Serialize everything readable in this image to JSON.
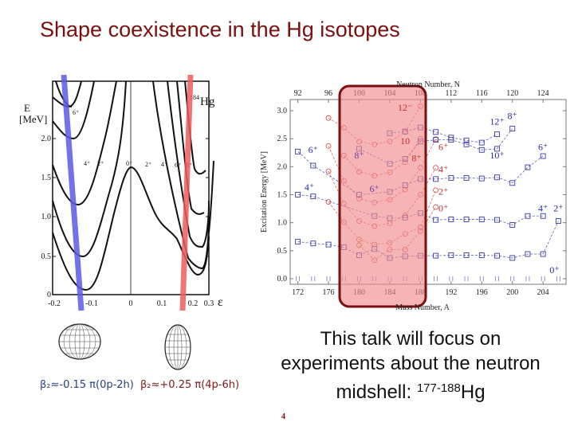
{
  "slide": {
    "title": "Shape coexistence in the Hg isotopes",
    "page_number": "4",
    "focus_text": {
      "line1": "This talk will focus on",
      "line2": "experiments about the neutron",
      "line3_prefix": "midshell: ",
      "line3_sup": "177-188",
      "line3_suffix": "Hg"
    },
    "colors": {
      "title": "#7a0f0f",
      "oblate_band": "#5a5ae6",
      "prolate_band": "#ee5c5c",
      "highlight_fill": "#f7a9a9",
      "highlight_border": "#7a0f0f"
    }
  },
  "left_chart": {
    "nucleus_label": "Hg",
    "nucleus_mass": "184",
    "ylabel_line1": "E",
    "ylabel_line2": "[MeV]",
    "xlabel": "ε",
    "y_ticks": [
      "0",
      "0.5",
      "1.0",
      "1.5",
      "2.0"
    ],
    "x_ticks": [
      "-0.2",
      "-0.1",
      "0",
      "0.1",
      "0.2",
      "0.3"
    ],
    "level_labels": [
      "6⁺",
      "4⁺",
      "2⁺",
      "0⁺",
      "2⁺",
      "4⁺",
      "6⁺",
      "8⁺"
    ]
  },
  "shapes": {
    "oblate_caption": "β₂≈-0.15 π(0p-2h)",
    "prolate_caption": "β₂≈+0.25 π(4p-6h)"
  },
  "chart_data": {
    "type": "line",
    "title": "",
    "xlabel": "Mass Number, A",
    "xlabel_top": "Neutron Number, N",
    "ylabel": "Excitation Energy [MeV]",
    "x_ticks": [
      172,
      176,
      180,
      184,
      188,
      192,
      196,
      200,
      204
    ],
    "x_ticks_top": [
      92,
      96,
      100,
      104,
      108,
      112,
      116,
      120,
      124
    ],
    "y_ticks": [
      0.0,
      0.5,
      1.0,
      1.5,
      2.0,
      2.5,
      3.0
    ],
    "xlim": [
      171,
      207
    ],
    "ylim": [
      -0.1,
      3.2
    ],
    "highlight_region": {
      "x_from": 177.5,
      "x_to": 188
    },
    "series": [
      {
        "name": "intruder 0+",
        "color": "#d04040",
        "x": [
          180,
          182,
          184,
          186,
          188,
          190
        ],
        "y": [
          0.6,
          0.33,
          0.52,
          0.52,
          0.85,
          1.28
        ]
      },
      {
        "name": "intruder 2+",
        "color": "#d04040",
        "x": [
          176,
          178,
          180,
          182,
          184,
          186,
          188,
          190
        ],
        "y": [
          1.37,
          1.01,
          0.7,
          0.61,
          0.64,
          0.8,
          0.92,
          1.58
        ]
      },
      {
        "name": "intruder 4+",
        "color": "#d04040",
        "x": [
          176,
          178,
          180,
          182,
          184,
          186,
          188,
          190
        ],
        "y": [
          1.92,
          1.34,
          1.03,
          0.94,
          0.99,
          1.13,
          1.5,
          1.98
        ]
      },
      {
        "name": "intruder 6+",
        "color": "#d04040",
        "x": [
          176,
          178,
          180,
          182,
          184,
          186,
          188,
          190
        ],
        "y": [
          2.37,
          1.75,
          1.43,
          1.36,
          1.41,
          1.59,
          1.98,
          2.49
        ]
      },
      {
        "name": "intruder 8+",
        "color": "#d04040",
        "x": [
          178,
          180,
          182,
          184,
          186,
          188
        ],
        "y": [
          2.2,
          1.91,
          1.84,
          1.9,
          2.08,
          2.5
        ]
      },
      {
        "name": "intruder 10+",
        "color": "#d04040",
        "x": [
          176,
          178,
          180,
          182,
          184,
          186,
          188
        ],
        "y": [
          2.87,
          2.7,
          2.45,
          2.4,
          2.45,
          2.62,
          3.08
        ]
      },
      {
        "name": "ground 0+",
        "color": "#3a3aa8",
        "x": [
          172,
          174,
          176,
          178,
          180,
          182,
          184,
          186,
          188,
          190,
          192,
          194,
          196,
          198,
          200,
          202,
          204,
          206
        ],
        "y": [
          0,
          0,
          0,
          0,
          0,
          0,
          0,
          0,
          0,
          0,
          0,
          0,
          0,
          0,
          0,
          0,
          0,
          0
        ]
      },
      {
        "name": "ground 2+",
        "color": "#3a3aa8",
        "x": [
          172,
          174,
          176,
          178,
          180,
          182,
          184,
          186,
          188,
          190,
          192,
          194,
          196,
          198,
          200,
          202,
          204,
          206
        ],
        "y": [
          0.66,
          0.63,
          0.61,
          0.56,
          0.42,
          0.53,
          0.37,
          0.4,
          0.41,
          0.41,
          0.42,
          0.42,
          0.42,
          0.41,
          0.37,
          0.44,
          0.44,
          1.03
        ]
      },
      {
        "name": "ground 4+",
        "color": "#3a3aa8",
        "x": [
          172,
          174,
          182,
          184,
          186,
          188,
          190,
          192,
          194,
          196,
          198,
          200,
          202,
          204
        ],
        "y": [
          1.5,
          1.47,
          1.12,
          1.08,
          1.09,
          1.17,
          1.05,
          1.06,
          1.06,
          1.06,
          1.05,
          0.96,
          1.12,
          1.12
        ]
      },
      {
        "name": "ground 6+",
        "color": "#3a3aa8",
        "x": [
          172,
          174,
          180,
          184,
          186,
          188,
          190,
          192,
          194,
          196,
          198,
          200,
          202,
          204
        ],
        "y": [
          2.27,
          2.02,
          1.5,
          1.55,
          1.67,
          1.78,
          1.78,
          1.8,
          1.8,
          1.79,
          1.81,
          1.71,
          1.99,
          2.19
        ]
      },
      {
        "name": "ground 8+",
        "color": "#3a3aa8",
        "x": [
          180,
          184,
          186,
          188,
          190,
          192,
          194,
          196,
          198,
          200
        ],
        "y": [
          2.32,
          2.05,
          2.14,
          2.45,
          2.48,
          2.48,
          2.4,
          2.3,
          2.32,
          2.68
        ]
      },
      {
        "name": "ground 10+/12+",
        "color": "#3a3aa8",
        "x": [
          184,
          186,
          188,
          190,
          192,
          194,
          196,
          198
        ],
        "y": [
          2.6,
          2.63,
          2.7,
          2.62,
          2.52,
          2.47,
          2.43,
          2.58
        ]
      }
    ],
    "annotations": [
      {
        "text": "6⁺",
        "x": 174,
        "y": 2.25,
        "color": "#2b2ba0"
      },
      {
        "text": "4⁺",
        "x": 173.5,
        "y": 1.58,
        "color": "#2b2ba0"
      },
      {
        "text": "8⁺",
        "x": 180,
        "y": 2.15,
        "color": "#6a3ab0"
      },
      {
        "text": "6⁺",
        "x": 182,
        "y": 1.55,
        "color": "#6a3ab0"
      },
      {
        "text": "12⁻",
        "x": 186,
        "y": 3.0,
        "color": "#c03030"
      },
      {
        "text": "10",
        "x": 186,
        "y": 2.4,
        "color": "#c03030"
      },
      {
        "text": "8⁺",
        "x": 187.5,
        "y": 2.1,
        "color": "#c03030"
      },
      {
        "text": "6⁺",
        "x": 191,
        "y": 2.3,
        "color": "#c03030"
      },
      {
        "text": "4⁺",
        "x": 191,
        "y": 1.9,
        "color": "#c03030"
      },
      {
        "text": "2⁺",
        "x": 191,
        "y": 1.5,
        "color": "#c03030"
      },
      {
        "text": "0⁺",
        "x": 191,
        "y": 1.2,
        "color": "#c03030"
      },
      {
        "text": "12⁺",
        "x": 198,
        "y": 2.75,
        "color": "#2b2ba0"
      },
      {
        "text": "8⁺",
        "x": 200,
        "y": 2.85,
        "color": "#2b2ba0"
      },
      {
        "text": "10⁺",
        "x": 198,
        "y": 2.15,
        "color": "#2b2ba0"
      },
      {
        "text": "6⁺",
        "x": 204,
        "y": 2.3,
        "color": "#2b2ba0"
      },
      {
        "text": "4⁺",
        "x": 204,
        "y": 1.2,
        "color": "#2b2ba0"
      },
      {
        "text": "2⁺",
        "x": 206,
        "y": 1.2,
        "color": "#2b2ba0"
      },
      {
        "text": "0⁺",
        "x": 205.5,
        "y": 0.1,
        "color": "#2b2ba0"
      }
    ],
    "grid": false,
    "legend": "none"
  }
}
